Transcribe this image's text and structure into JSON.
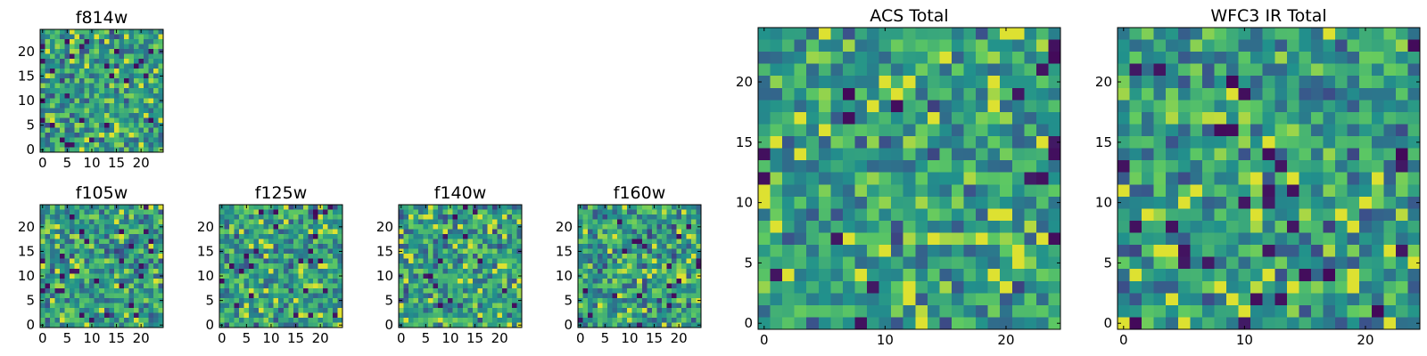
{
  "chart_data": {
    "type": "heatmap",
    "colormap": [
      "#440154",
      "#3b528b",
      "#21918c",
      "#5ec962",
      "#fde725"
    ],
    "panels": [
      {
        "title": "f814w",
        "grid_size": 25,
        "xlim": [
          0,
          24
        ],
        "ylim": [
          0,
          24
        ],
        "xticks": [
          0,
          5,
          10,
          15,
          20
        ],
        "yticks": [
          0,
          5,
          10,
          15,
          20
        ],
        "seed": 814
      },
      {
        "title": "f105w",
        "grid_size": 25,
        "xlim": [
          0,
          24
        ],
        "ylim": [
          0,
          24
        ],
        "xticks": [
          0,
          5,
          10,
          15,
          20
        ],
        "yticks": [
          0,
          5,
          10,
          15,
          20
        ],
        "seed": 105
      },
      {
        "title": "f125w",
        "grid_size": 25,
        "xlim": [
          0,
          24
        ],
        "ylim": [
          0,
          24
        ],
        "xticks": [
          0,
          5,
          10,
          15,
          20
        ],
        "yticks": [
          0,
          5,
          10,
          15,
          20
        ],
        "seed": 125
      },
      {
        "title": "f140w",
        "grid_size": 25,
        "xlim": [
          0,
          24
        ],
        "ylim": [
          0,
          24
        ],
        "xticks": [
          0,
          5,
          10,
          15,
          20
        ],
        "yticks": [
          0,
          5,
          10,
          15,
          20
        ],
        "seed": 140
      },
      {
        "title": "f160w",
        "grid_size": 25,
        "xlim": [
          0,
          24
        ],
        "ylim": [
          0,
          24
        ],
        "xticks": [
          0,
          5,
          10,
          15,
          20
        ],
        "yticks": [
          0,
          5,
          10,
          15,
          20
        ],
        "seed": 160
      },
      {
        "title": "ACS Total",
        "grid_size": 25,
        "xlim": [
          0,
          24
        ],
        "ylim": [
          0,
          24
        ],
        "xticks": [
          0,
          10,
          20
        ],
        "yticks": [
          0,
          5,
          10,
          15,
          20
        ],
        "seed": 1001
      },
      {
        "title": "WFC3 IR Total",
        "grid_size": 25,
        "xlim": [
          0,
          24
        ],
        "ylim": [
          0,
          24
        ],
        "xticks": [
          0,
          10,
          20
        ],
        "yticks": [
          0,
          5,
          10,
          15,
          20
        ],
        "seed": 2002
      }
    ]
  }
}
